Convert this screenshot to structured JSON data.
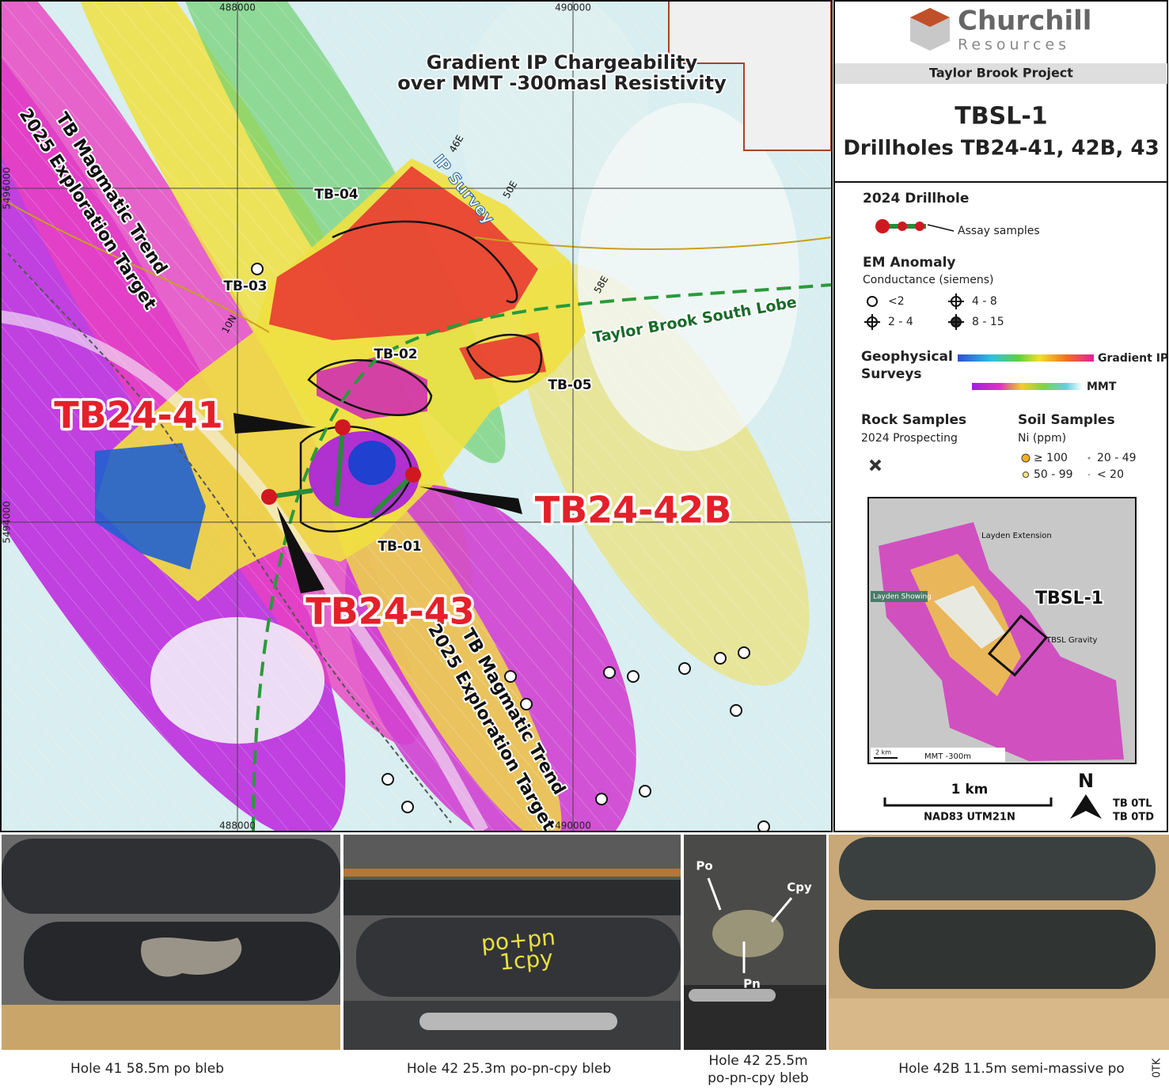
{
  "map": {
    "title": [
      "Gradient IP Chargeability",
      "over MMT -300masl Resistivity"
    ],
    "grid_labels": {
      "top": [
        "488000",
        "490000"
      ],
      "left": [
        "5496000",
        "5494000"
      ],
      "bottom": [
        "488000",
        "490000"
      ]
    },
    "zones": [
      "TB-04",
      "TB-03",
      "TB-02",
      "TB-05",
      "TB-01"
    ],
    "survey_labels": [
      "IP Survey",
      "46E",
      "50E",
      "58E",
      "10N"
    ],
    "lobe": "Taylor Brook South Lobe",
    "drillholes": [
      "TB24-41",
      "TB24-42B",
      "TB24-43"
    ],
    "targets": [
      {
        "line1": "TB Magmatic Trend",
        "line2": "2025 Exploration Target"
      },
      {
        "line1": "TB Magmatic Trend",
        "line2": "2025 Exploration Target"
      }
    ]
  },
  "legend": {
    "logo": {
      "name": "Churchill",
      "sub": "Resources"
    },
    "project": "Taylor Brook Project",
    "title": "TBSL-1",
    "subtitle": "Drillholes TB24-41, 42B, 43",
    "drillhole": {
      "heading": "2024 Drillhole",
      "label": "Assay samples"
    },
    "em": {
      "heading": "EM Anomaly",
      "sub": "Conductance (siemens)",
      "classes": [
        "<2",
        "2 - 4",
        "4 - 8",
        "8 - 15"
      ]
    },
    "geophysics": {
      "heading": [
        "Geophysical",
        "Surveys"
      ],
      "ip": "Gradient IP",
      "mmt": "MMT"
    },
    "rock": {
      "heading": "Rock Samples",
      "sub": "2024 Prospecting"
    },
    "soil": {
      "heading": "Soil Samples",
      "sub": "Ni (ppm)",
      "classes": [
        "≥ 100",
        "50 - 99",
        "20 - 49",
        "< 20"
      ]
    },
    "inset": {
      "labels": [
        "Layden Extension",
        "Layden Showing",
        "TBSL-1",
        "TBSL Gravity",
        "MMT -300m",
        "2 km"
      ]
    },
    "scale": "1 km",
    "datum": "NAD83 UTM21N",
    "north": "N",
    "codes": [
      "TB 0TL",
      "TB 0TD"
    ]
  },
  "photos": [
    {
      "caption": [
        "Hole 41 58.5m po bleb"
      ],
      "labels": []
    },
    {
      "caption": [
        "Hole 42 25.3m po-pn-cpy bleb"
      ],
      "labels": [
        "po+pn",
        "1cpy"
      ]
    },
    {
      "caption": [
        "Hole 42 25.5m",
        "po-pn-cpy bleb"
      ],
      "labels": [
        "Po",
        "Cpy",
        "Pn"
      ]
    },
    {
      "caption": [
        "Hole 42B 11.5m semi-massive po"
      ],
      "labels": []
    }
  ],
  "corner_code": "0TK"
}
